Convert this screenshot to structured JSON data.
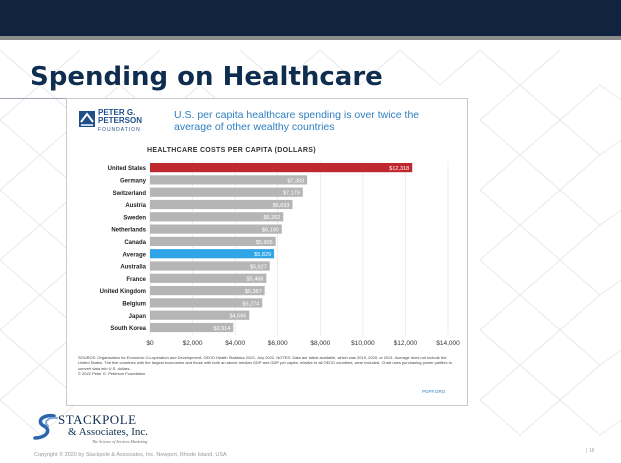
{
  "slide": {
    "title": "Spending on Healthcare",
    "footer": "Copyright © 2020 by Stackpole & Associates, Inc.  Newport, Rhode Island, USA",
    "page_number": "| 18"
  },
  "brand": {
    "name": "STACKPOLE",
    "sub": "& Associates, Inc.",
    "tagline": "The Science of Services Marketing"
  },
  "infographic": {
    "logo_line1": "PETER G.",
    "logo_line2": "PETERSON",
    "logo_line3": "FOUNDATION",
    "headline": "U.S. per capita healthcare spending is over twice the average of other wealthy countries",
    "subhead": "HEALTHCARE COSTS PER CAPITA (DOLLARS)",
    "source": "SOURCE: Organisation for Economic Co-operation and Development, OECD Health Statistics 2022, July 2022. NOTES: Data are latest available, which was 2019, 2020, or 2021. Average does not include the United States. The five countries with the largest economies and those with both an above median GDP and GDP per capita, relative to all OECD countries, were included. Chart uses purchasing power parities to convert data into U.S. dollars.",
    "copyright": "© 2022 Peter G. Peterson Foundation",
    "pdf_link": "PGPF.ORG",
    "colors": {
      "us": "#c0282f",
      "average": "#2fa4e7",
      "other": "#b5b5b5",
      "headline": "#2e7fc1"
    }
  },
  "chart_data": {
    "type": "bar",
    "orientation": "horizontal",
    "title": "HEALTHCARE COSTS PER CAPITA (DOLLARS)",
    "categories": [
      "United States",
      "Germany",
      "Switzerland",
      "Austria",
      "Sweden",
      "Netherlands",
      "Canada",
      "Average",
      "Australia",
      "France",
      "United Kingdom",
      "Belgium",
      "Japan",
      "South Korea"
    ],
    "values": [
      12318,
      7383,
      7179,
      6693,
      6262,
      6190,
      5905,
      5829,
      5627,
      5468,
      5387,
      5274,
      4666,
      3914
    ],
    "value_labels": [
      "$12,318",
      "$7,383",
      "$7,179",
      "$6,693",
      "$6,262",
      "$6,190",
      "$5,905",
      "$5,829",
      "$5,627",
      "$5,468",
      "$5,387",
      "$5,274",
      "$4,666",
      "$3,914"
    ],
    "highlight": {
      "United States": "us",
      "Average": "average"
    },
    "xlim": [
      0,
      14000
    ],
    "xticks": [
      0,
      2000,
      4000,
      6000,
      8000,
      10000,
      12000,
      14000
    ],
    "xtick_labels": [
      "$0",
      "$2,000",
      "$4,000",
      "$6,000",
      "$8,000",
      "$10,000",
      "$12,000",
      "$14,000"
    ],
    "grid": true
  }
}
